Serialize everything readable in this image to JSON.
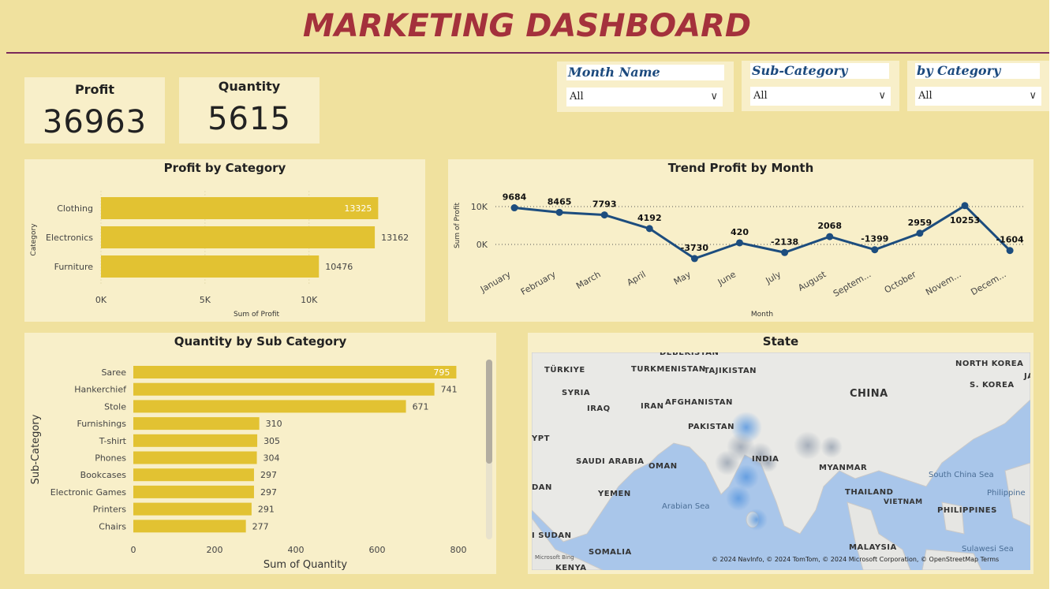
{
  "header": {
    "title": "MARKETING DASHBOARD"
  },
  "kpis": [
    {
      "label": "Profit",
      "value": "36963"
    },
    {
      "label": "Quantity",
      "value": "5615"
    }
  ],
  "slicers": [
    {
      "title": "Month Name",
      "value": "All"
    },
    {
      "title": "Sub-Category",
      "value": "All"
    },
    {
      "title": "by Category",
      "value": "All"
    }
  ],
  "colors": {
    "background": "#f0e19e",
    "card": "#f8efc9",
    "bar": "#e2c232",
    "line": "#1d4d7e",
    "title": "#a4313c"
  },
  "profit_by_category": {
    "title": "Profit by Category",
    "chart_data": {
      "type": "bar",
      "orientation": "horizontal",
      "categories": [
        "Clothing",
        "Electronics",
        "Furniture"
      ],
      "values": [
        13325,
        13162,
        10476
      ],
      "xlabel": "Sum of Profit",
      "ylabel": "Category",
      "xticks": [
        "0K",
        "5K",
        "10K"
      ],
      "xlim": [
        0,
        13500
      ],
      "grid": true
    }
  },
  "trend_profit_by_month": {
    "title": "Trend Profit by Month",
    "chart_data": {
      "type": "line",
      "x": [
        "January",
        "February",
        "March",
        "April",
        "May",
        "June",
        "July",
        "August",
        "Septem...",
        "October",
        "Novem...",
        "Decem..."
      ],
      "values": [
        9684,
        8465,
        7793,
        4192,
        -3730,
        420,
        -2138,
        2068,
        -1399,
        2959,
        10253,
        -1604
      ],
      "labels": [
        "9684",
        "8465",
        "7793",
        "4192",
        "-3730",
        "420",
        "-2138",
        "2068",
        "-1399",
        "2959",
        "10253",
        "-1604"
      ],
      "xlabel": "Month",
      "ylabel": "Sum of Profit",
      "yticks": [
        "10K",
        "0K"
      ],
      "grid": true
    }
  },
  "quantity_by_sub_category": {
    "title": "Quantity by Sub Category",
    "chart_data": {
      "type": "bar",
      "orientation": "horizontal",
      "categories": [
        "Saree",
        "Hankerchief",
        "Stole",
        "Furnishings",
        "T-shirt",
        "Phones",
        "Bookcases",
        "Electronic Games",
        "Printers",
        "Chairs"
      ],
      "values": [
        795,
        741,
        671,
        310,
        305,
        304,
        297,
        297,
        291,
        277
      ],
      "xlabel": "Sum of Quantity",
      "ylabel": "Sub-Category",
      "xticks": [
        "0",
        "200",
        "400",
        "600",
        "800"
      ],
      "xlim": [
        0,
        800
      ]
    }
  },
  "state_map": {
    "title": "State",
    "labels": {
      "turkiye": "TÜRKIYE",
      "turkmenistan": "TURKMENISTAN",
      "tajikistan": "TAJIKISTAN",
      "north_korea": "NORTH KOREA",
      "syria": "SYRIA",
      "iraq": "IRAQ",
      "iran": "IRAN",
      "afghanistan": "AFGHANISTAN",
      "china": "CHINA",
      "s_korea": "S. KOREA",
      "pakistan": "PAKISTAN",
      "ypt": "YPT",
      "saudi": "SAUDI ARABIA",
      "oman": "OMAN",
      "india": "INDIA",
      "myanmar": "MYANMAR",
      "yemen": "YEMEN",
      "thailand": "THAILAND",
      "vietnam": "VIETNAM",
      "philippines": "PHILIPPINES",
      "dan": "DAN",
      "sudan": "I SUDAN",
      "somalia": "SOMALIA",
      "malaysia": "MALAYSIA",
      "kenya": "KENYA",
      "jai": "JAI"
    },
    "seas": {
      "arabian": "Arabian Sea",
      "south_china": "South China Sea",
      "philippine": "Philippine",
      "sulawesi": "Sulawesi Sea"
    },
    "credit": "© 2024 NavInfo, © 2024 TomTom, © 2024 Microsoft Corporation, © OpenStreetMap  Terms",
    "bing": "Microsoft Bing"
  }
}
